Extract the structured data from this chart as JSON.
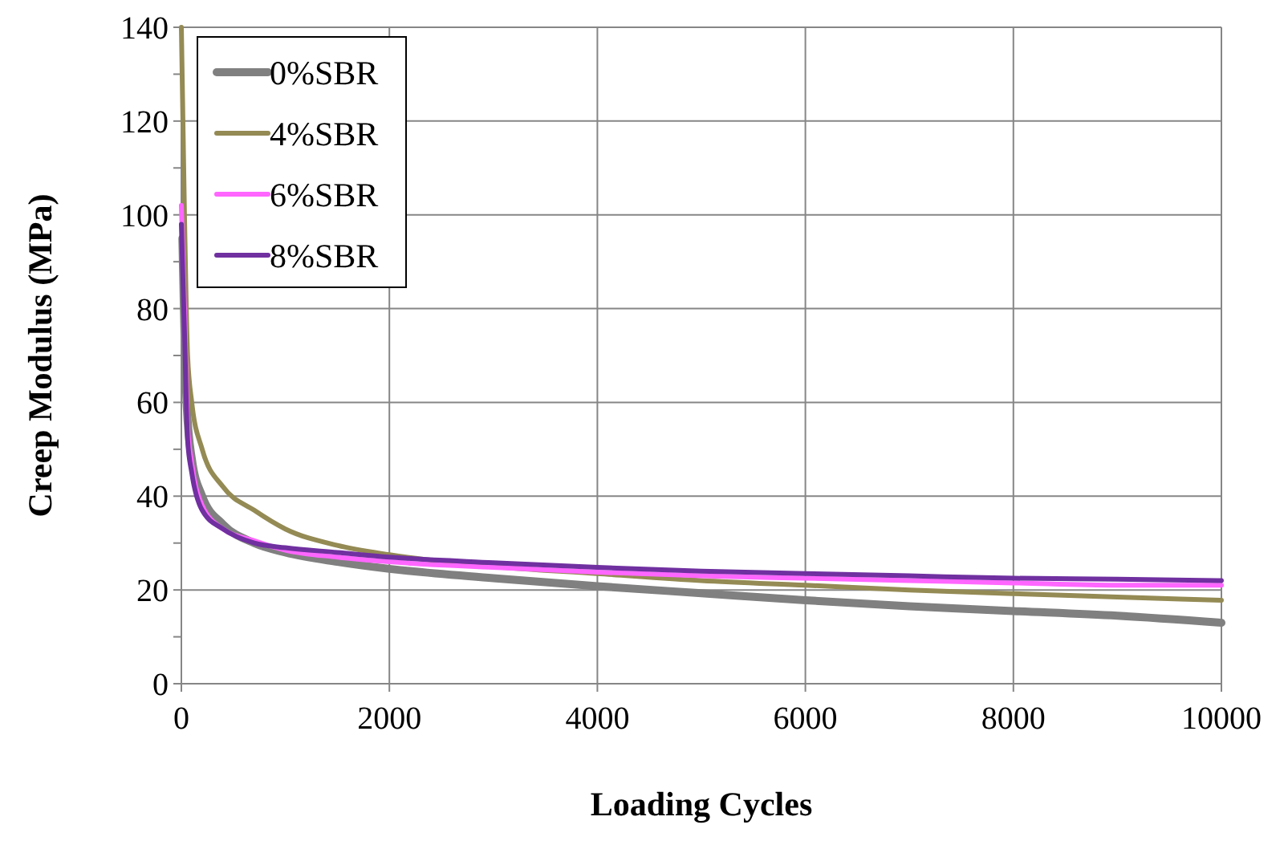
{
  "chart_data": {
    "type": "line",
    "xlabel": "Loading Cycles",
    "ylabel": "Creep Modulus (MPa)",
    "xlim": [
      0,
      10000
    ],
    "xticks": [
      0,
      2000,
      4000,
      6000,
      8000,
      10000
    ],
    "ylim": [
      0,
      140
    ],
    "yticks": [
      0,
      {
        "value": 10,
        "label": null
      },
      20,
      {
        "value": 30,
        "label": null
      },
      40,
      {
        "value": 50,
        "label": null
      },
      60,
      {
        "value": 70,
        "label": null
      },
      80,
      {
        "value": 90,
        "label": null
      },
      100,
      {
        "value": 110,
        "label": null
      },
      120,
      {
        "value": 130,
        "label": null
      },
      140
    ],
    "grid": true,
    "legend": "top left",
    "marker": "none",
    "line_style": "solid",
    "series": [
      {
        "name": "0%SBR",
        "color": "#808080",
        "x": [
          10,
          50,
          100,
          200,
          400,
          700,
          1000,
          1500,
          2000,
          3000,
          4000,
          5000,
          6000,
          7000,
          8000,
          9000,
          10000
        ],
        "values": [
          95,
          60,
          48,
          40,
          34,
          30,
          28,
          26,
          24.5,
          22.5,
          20.8,
          19.3,
          17.8,
          16.5,
          15.5,
          14.5,
          13
        ]
      },
      {
        "name": "4%SBR",
        "color": "#948a54",
        "x": [
          0,
          30,
          60,
          100,
          200,
          400,
          700,
          1000,
          1500,
          2000,
          3000,
          4000,
          5000,
          6000,
          7000,
          8000,
          9000,
          10000
        ],
        "values": [
          140,
          100,
          70,
          60,
          50,
          42,
          37,
          33,
          29.5,
          27.5,
          25,
          23.5,
          22,
          21,
          20,
          19.2,
          18.5,
          17.8
        ]
      },
      {
        "name": "6%SBR",
        "color": "#ff66ff",
        "x": [
          0,
          30,
          60,
          100,
          200,
          400,
          700,
          1000,
          1500,
          2000,
          3000,
          4000,
          5000,
          6000,
          7000,
          8000,
          9000,
          10000
        ],
        "values": [
          102,
          80,
          55,
          47,
          38,
          33,
          30.5,
          28.5,
          27,
          26,
          24.8,
          23.8,
          23,
          22.5,
          22,
          21.5,
          21,
          21
        ]
      },
      {
        "name": "8%SBR",
        "color": "#7030a0",
        "x": [
          0,
          30,
          60,
          100,
          200,
          400,
          700,
          1000,
          1500,
          2000,
          3000,
          4000,
          5000,
          6000,
          7000,
          8000,
          9000,
          10000
        ],
        "values": [
          98,
          75,
          52,
          45,
          37,
          33,
          30,
          29,
          28,
          27,
          25.8,
          24.8,
          24,
          23.5,
          23,
          22.5,
          22.3,
          22
        ]
      }
    ]
  }
}
